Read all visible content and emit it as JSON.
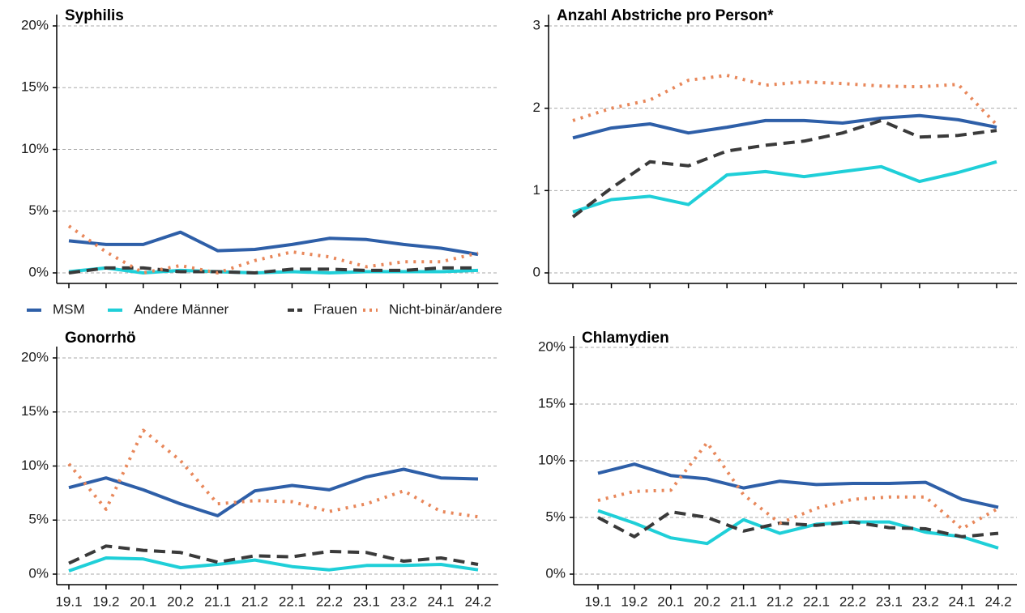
{
  "chart_data": [
    {
      "type": "line",
      "title": "Syphilis",
      "categories": [
        null,
        null,
        null,
        null,
        null,
        null,
        null,
        null,
        null,
        null,
        null,
        null
      ],
      "ylim": [
        0,
        20
      ],
      "yticks": [
        {
          "value": 0,
          "label": "0%"
        },
        {
          "value": 5,
          "label": "5%"
        },
        {
          "value": 10,
          "label": "10%"
        },
        {
          "value": 15,
          "label": "15%"
        },
        {
          "value": 20,
          "label": "20%"
        }
      ],
      "grid": true,
      "series": [
        {
          "name": "MSM",
          "color": "#2e5fa8",
          "linestyle": "solid",
          "values": [
            2.6,
            2.3,
            2.3,
            3.3,
            1.8,
            1.9,
            2.3,
            2.8,
            2.7,
            2.3,
            2.0,
            1.5
          ]
        },
        {
          "name": "Andere Männer",
          "color": "#1fcfd8",
          "linestyle": "solid",
          "values": [
            0.1,
            0.4,
            0.0,
            0.2,
            0.1,
            0.0,
            0.1,
            0.0,
            0.1,
            0.1,
            0.1,
            0.2
          ]
        },
        {
          "name": "Frauen",
          "color": "#3a3a3a",
          "linestyle": "dashed",
          "values": [
            0.0,
            0.4,
            0.4,
            0.1,
            0.1,
            0.0,
            0.3,
            0.3,
            0.2,
            0.2,
            0.4,
            0.4
          ]
        },
        {
          "name": "Nicht-binär/andere",
          "color": "#e8875a",
          "linestyle": "dotted",
          "values": [
            3.8,
            1.7,
            0.0,
            0.6,
            0.0,
            1.0,
            1.7,
            1.3,
            0.5,
            0.9,
            0.9,
            1.6
          ]
        }
      ]
    },
    {
      "type": "line",
      "title": "Anzahl Abstriche pro Person*",
      "categories": [
        null,
        null,
        null,
        null,
        null,
        null,
        null,
        null,
        null,
        null,
        null,
        null
      ],
      "ylim": [
        0,
        3
      ],
      "yticks": [
        0,
        1,
        2,
        3
      ],
      "grid": true,
      "series": [
        {
          "name": "MSM",
          "color": "#2e5fa8",
          "linestyle": "solid",
          "values": [
            1.64,
            1.76,
            1.81,
            1.7,
            1.77,
            1.85,
            1.85,
            1.82,
            1.88,
            1.91,
            1.86,
            1.77
          ]
        },
        {
          "name": "Andere Männer",
          "color": "#1fcfd8",
          "linestyle": "solid",
          "values": [
            0.74,
            0.89,
            0.93,
            0.83,
            1.19,
            1.23,
            1.17,
            1.23,
            1.29,
            1.11,
            1.22,
            1.35
          ]
        },
        {
          "name": "Frauen",
          "color": "#3a3a3a",
          "linestyle": "dashed",
          "values": [
            0.68,
            1.03,
            1.35,
            1.3,
            1.48,
            1.55,
            1.6,
            1.7,
            1.85,
            1.65,
            1.67,
            1.73
          ]
        },
        {
          "name": "Nicht-binär/andere",
          "color": "#e8875a",
          "linestyle": "dotted",
          "values": [
            1.85,
            2.0,
            2.1,
            2.34,
            2.4,
            2.28,
            2.32,
            2.3,
            2.27,
            2.26,
            2.29,
            1.8
          ]
        }
      ]
    },
    {
      "type": "line",
      "title": "Gonorrhö",
      "categories": [
        "19.1",
        "19.2",
        "20.1",
        "20.2",
        "21.1",
        "21.2",
        "22.1",
        "22.2",
        "23.1",
        "23.2",
        "24.1",
        "24.2"
      ],
      "ylim": [
        0,
        20
      ],
      "yticks": [
        {
          "value": 0,
          "label": "0%"
        },
        {
          "value": 5,
          "label": "5%"
        },
        {
          "value": 10,
          "label": "10%"
        },
        {
          "value": 15,
          "label": "15%"
        },
        {
          "value": 20,
          "label": "20%"
        }
      ],
      "grid": true,
      "series": [
        {
          "name": "MSM",
          "color": "#2e5fa8",
          "linestyle": "solid",
          "values": [
            8.0,
            8.9,
            7.8,
            6.5,
            5.4,
            7.7,
            8.2,
            7.8,
            9.0,
            9.7,
            8.9,
            8.8
          ]
        },
        {
          "name": "Andere Männer",
          "color": "#1fcfd8",
          "linestyle": "solid",
          "values": [
            0.3,
            1.5,
            1.4,
            0.6,
            0.9,
            1.3,
            0.7,
            0.4,
            0.8,
            0.8,
            0.9,
            0.4
          ]
        },
        {
          "name": "Frauen",
          "color": "#3a3a3a",
          "linestyle": "dashed",
          "values": [
            1.0,
            2.6,
            2.2,
            2.0,
            1.1,
            1.7,
            1.6,
            2.1,
            2.0,
            1.2,
            1.5,
            0.9
          ]
        },
        {
          "name": "Nicht-binär/andere",
          "color": "#e8875a",
          "linestyle": "dotted",
          "values": [
            10.2,
            6.0,
            13.3,
            10.5,
            6.5,
            6.8,
            6.7,
            5.8,
            6.5,
            7.7,
            5.8,
            5.3
          ]
        }
      ]
    },
    {
      "type": "line",
      "title": "Chlamydien",
      "categories": [
        "19.1",
        "19.2",
        "20.1",
        "20.2",
        "21.1",
        "21.2",
        "22.1",
        "22.2",
        "23.1",
        "23.2",
        "24.1",
        "24.2"
      ],
      "ylim": [
        0,
        20
      ],
      "yticks": [
        {
          "value": 0,
          "label": "0%"
        },
        {
          "value": 5,
          "label": "5%"
        },
        {
          "value": 10,
          "label": "10%"
        },
        {
          "value": 15,
          "label": "15%"
        },
        {
          "value": 20,
          "label": "20%"
        }
      ],
      "grid": true,
      "series": [
        {
          "name": "MSM",
          "color": "#2e5fa8",
          "linestyle": "solid",
          "values": [
            8.9,
            9.7,
            8.7,
            8.4,
            7.6,
            8.2,
            7.9,
            8.0,
            8.0,
            8.1,
            6.6,
            5.9
          ]
        },
        {
          "name": "Andere Männer",
          "color": "#1fcfd8",
          "linestyle": "solid",
          "values": [
            5.6,
            4.5,
            3.2,
            2.7,
            4.8,
            3.6,
            4.4,
            4.6,
            4.6,
            3.7,
            3.3,
            2.3
          ]
        },
        {
          "name": "Frauen",
          "color": "#3a3a3a",
          "linestyle": "dashed",
          "values": [
            5.0,
            3.3,
            5.5,
            5.0,
            3.8,
            4.5,
            4.3,
            4.6,
            4.1,
            4.0,
            3.3,
            3.6
          ]
        },
        {
          "name": "Nicht-binär/andere",
          "color": "#e8875a",
          "linestyle": "dotted",
          "values": [
            6.5,
            7.3,
            7.4,
            11.6,
            7.0,
            4.5,
            5.8,
            6.6,
            6.8,
            6.8,
            4.0,
            5.8
          ]
        }
      ]
    }
  ]
}
